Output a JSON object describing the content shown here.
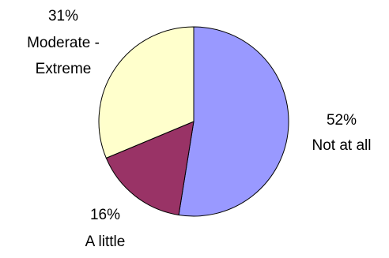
{
  "chart_data": {
    "type": "pie",
    "title": "",
    "slices": [
      {
        "percent_label": "52%",
        "name": "Not at all",
        "value": 52,
        "color": "#9999ff"
      },
      {
        "percent_label": "16%",
        "name": "A little",
        "value": 16,
        "color": "#993366"
      },
      {
        "percent_label": "31%",
        "name_lines": [
          "Moderate -",
          "Extreme"
        ],
        "value": 31,
        "color": "#ffffcc"
      }
    ],
    "start": "12 o'clock",
    "direction": "clockwise",
    "legend": "none"
  }
}
